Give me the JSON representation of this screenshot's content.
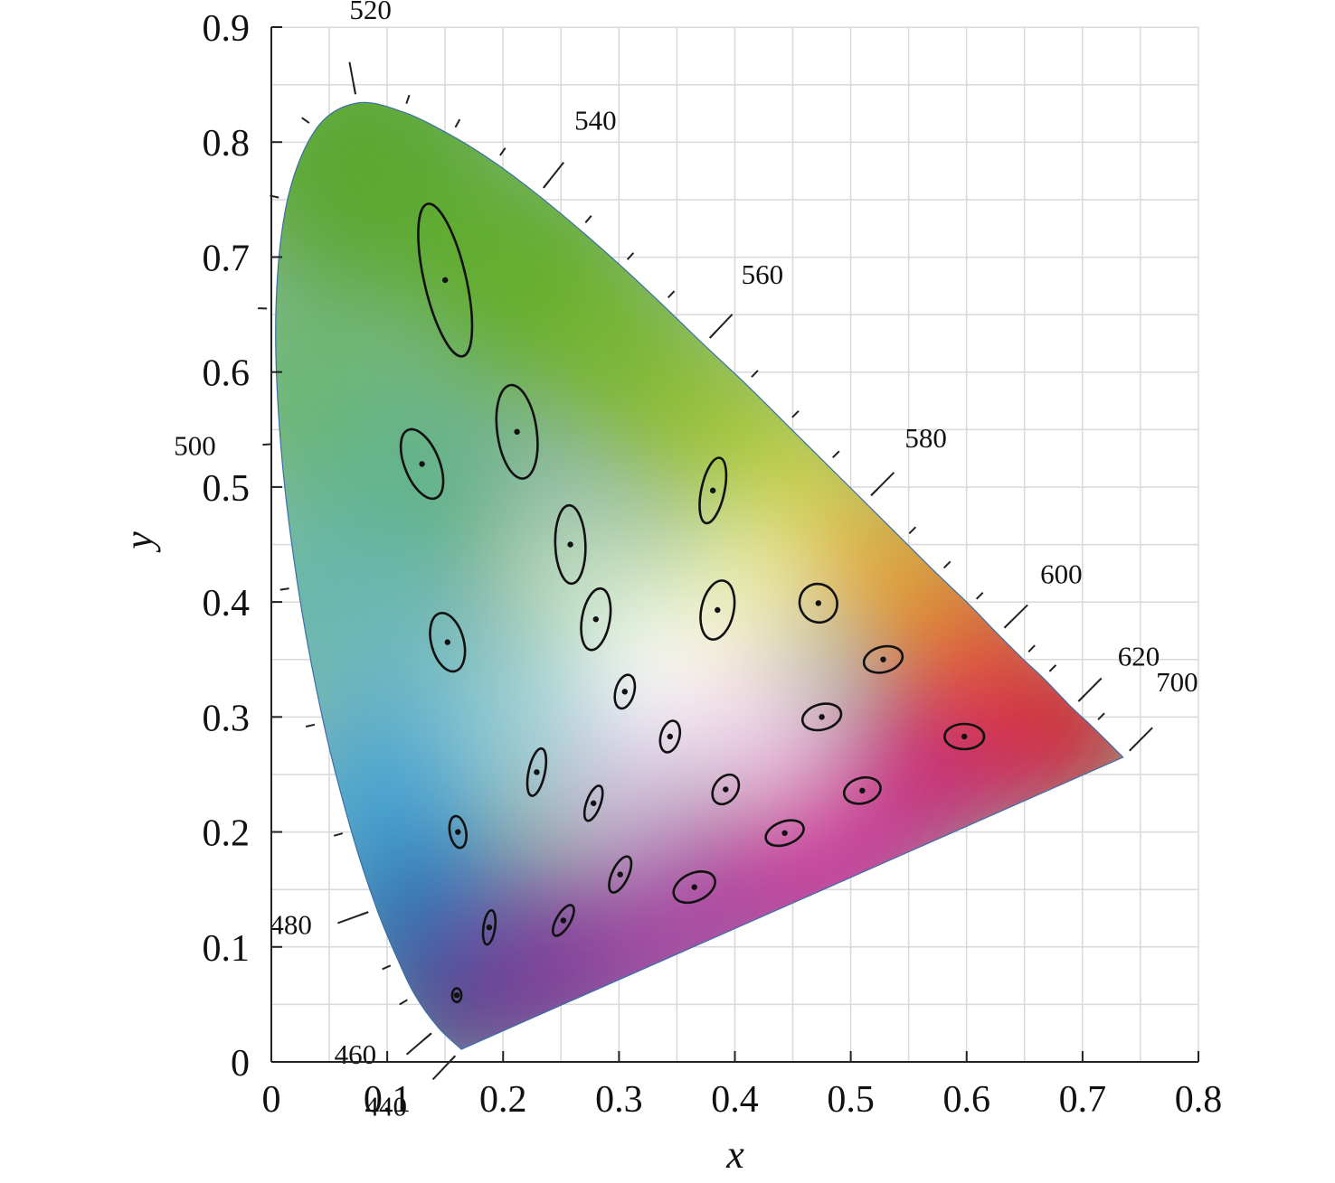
{
  "chart_data": {
    "type": "scatter",
    "title": "",
    "xlabel": "x",
    "ylabel": "y",
    "xlim": [
      0,
      0.8
    ],
    "ylim": [
      0,
      0.9
    ],
    "x_ticks": [
      "0",
      "0.1",
      "0.2",
      "0.3",
      "0.4",
      "0.5",
      "0.6",
      "0.7",
      "0.8"
    ],
    "y_ticks": [
      "0",
      "0.1",
      "0.2",
      "0.3",
      "0.4",
      "0.5",
      "0.6",
      "0.7",
      "0.8",
      "0.9"
    ],
    "grid": true,
    "spectral_locus": [
      {
        "nm": 440,
        "x": 0.164,
        "y": 0.011
      },
      {
        "nm": 460,
        "x": 0.144,
        "y": 0.03
      },
      {
        "nm": 470,
        "x": 0.124,
        "y": 0.058
      },
      {
        "nm": 475,
        "x": 0.11,
        "y": 0.087
      },
      {
        "nm": 480,
        "x": 0.091,
        "y": 0.133
      },
      {
        "nm": 485,
        "x": 0.069,
        "y": 0.201
      },
      {
        "nm": 490,
        "x": 0.045,
        "y": 0.295
      },
      {
        "nm": 495,
        "x": 0.023,
        "y": 0.413
      },
      {
        "nm": 500,
        "x": 0.008,
        "y": 0.538
      },
      {
        "nm": 505,
        "x": 0.004,
        "y": 0.655
      },
      {
        "nm": 510,
        "x": 0.014,
        "y": 0.75
      },
      {
        "nm": 515,
        "x": 0.039,
        "y": 0.812
      },
      {
        "nm": 520,
        "x": 0.074,
        "y": 0.834
      },
      {
        "nm": 525,
        "x": 0.114,
        "y": 0.826
      },
      {
        "nm": 530,
        "x": 0.155,
        "y": 0.806
      },
      {
        "nm": 535,
        "x": 0.193,
        "y": 0.782
      },
      {
        "nm": 540,
        "x": 0.23,
        "y": 0.754
      },
      {
        "nm": 545,
        "x": 0.266,
        "y": 0.724
      },
      {
        "nm": 550,
        "x": 0.302,
        "y": 0.692
      },
      {
        "nm": 555,
        "x": 0.337,
        "y": 0.659
      },
      {
        "nm": 560,
        "x": 0.373,
        "y": 0.624
      },
      {
        "nm": 565,
        "x": 0.409,
        "y": 0.59
      },
      {
        "nm": 570,
        "x": 0.444,
        "y": 0.555
      },
      {
        "nm": 575,
        "x": 0.479,
        "y": 0.52
      },
      {
        "nm": 580,
        "x": 0.512,
        "y": 0.487
      },
      {
        "nm": 585,
        "x": 0.545,
        "y": 0.454
      },
      {
        "nm": 590,
        "x": 0.575,
        "y": 0.424
      },
      {
        "nm": 595,
        "x": 0.603,
        "y": 0.397
      },
      {
        "nm": 600,
        "x": 0.627,
        "y": 0.372
      },
      {
        "nm": 605,
        "x": 0.648,
        "y": 0.351
      },
      {
        "nm": 610,
        "x": 0.666,
        "y": 0.334
      },
      {
        "nm": 620,
        "x": 0.691,
        "y": 0.308
      },
      {
        "nm": 630,
        "x": 0.708,
        "y": 0.292
      },
      {
        "nm": 700,
        "x": 0.735,
        "y": 0.265
      }
    ],
    "wavelength_labels": [
      {
        "label": "440",
        "nm": 440
      },
      {
        "label": "460",
        "nm": 460
      },
      {
        "label": "480",
        "nm": 480
      },
      {
        "label": "500",
        "nm": 500
      },
      {
        "label": "520",
        "nm": 520
      },
      {
        "label": "540",
        "nm": 540
      },
      {
        "label": "560",
        "nm": 560
      },
      {
        "label": "580",
        "nm": 580
      },
      {
        "label": "600",
        "nm": 600
      },
      {
        "label": "620",
        "nm": 620
      },
      {
        "label": "700",
        "nm": 700
      }
    ],
    "ellipses": [
      {
        "x": 0.15,
        "y": 0.68,
        "rx": 0.018,
        "ry": 0.068,
        "angle": 13
      },
      {
        "x": 0.212,
        "y": 0.548,
        "rx": 0.017,
        "ry": 0.041,
        "angle": 8
      },
      {
        "x": 0.13,
        "y": 0.52,
        "rx": 0.015,
        "ry": 0.032,
        "angle": 22
      },
      {
        "x": 0.381,
        "y": 0.497,
        "rx": 0.01,
        "ry": 0.029,
        "angle": -12
      },
      {
        "x": 0.258,
        "y": 0.45,
        "rx": 0.013,
        "ry": 0.034,
        "angle": 2
      },
      {
        "x": 0.28,
        "y": 0.385,
        "rx": 0.012,
        "ry": 0.027,
        "angle": -10
      },
      {
        "x": 0.385,
        "y": 0.393,
        "rx": 0.014,
        "ry": 0.026,
        "angle": -12
      },
      {
        "x": 0.472,
        "y": 0.399,
        "rx": 0.016,
        "ry": 0.017,
        "angle": 30
      },
      {
        "x": 0.152,
        "y": 0.365,
        "rx": 0.014,
        "ry": 0.026,
        "angle": 15
      },
      {
        "x": 0.528,
        "y": 0.35,
        "rx": 0.017,
        "ry": 0.011,
        "angle": 15
      },
      {
        "x": 0.305,
        "y": 0.322,
        "rx": 0.008,
        "ry": 0.015,
        "angle": -15
      },
      {
        "x": 0.475,
        "y": 0.3,
        "rx": 0.017,
        "ry": 0.011,
        "angle": 15
      },
      {
        "x": 0.598,
        "y": 0.283,
        "rx": 0.017,
        "ry": 0.011,
        "angle": 0
      },
      {
        "x": 0.344,
        "y": 0.283,
        "rx": 0.008,
        "ry": 0.014,
        "angle": -15
      },
      {
        "x": 0.229,
        "y": 0.252,
        "rx": 0.007,
        "ry": 0.021,
        "angle": -12
      },
      {
        "x": 0.392,
        "y": 0.237,
        "rx": 0.01,
        "ry": 0.014,
        "angle": -35
      },
      {
        "x": 0.51,
        "y": 0.236,
        "rx": 0.016,
        "ry": 0.011,
        "angle": 15
      },
      {
        "x": 0.278,
        "y": 0.225,
        "rx": 0.006,
        "ry": 0.016,
        "angle": -20
      },
      {
        "x": 0.161,
        "y": 0.2,
        "rx": 0.007,
        "ry": 0.014,
        "angle": 10
      },
      {
        "x": 0.443,
        "y": 0.199,
        "rx": 0.017,
        "ry": 0.01,
        "angle": 20
      },
      {
        "x": 0.301,
        "y": 0.163,
        "rx": 0.007,
        "ry": 0.017,
        "angle": -25
      },
      {
        "x": 0.365,
        "y": 0.152,
        "rx": 0.019,
        "ry": 0.012,
        "angle": 25
      },
      {
        "x": 0.252,
        "y": 0.123,
        "rx": 0.006,
        "ry": 0.015,
        "angle": -30
      },
      {
        "x": 0.188,
        "y": 0.117,
        "rx": 0.005,
        "ry": 0.015,
        "angle": -8
      },
      {
        "x": 0.16,
        "y": 0.058,
        "rx": 0.004,
        "ry": 0.006,
        "angle": 0
      }
    ]
  }
}
